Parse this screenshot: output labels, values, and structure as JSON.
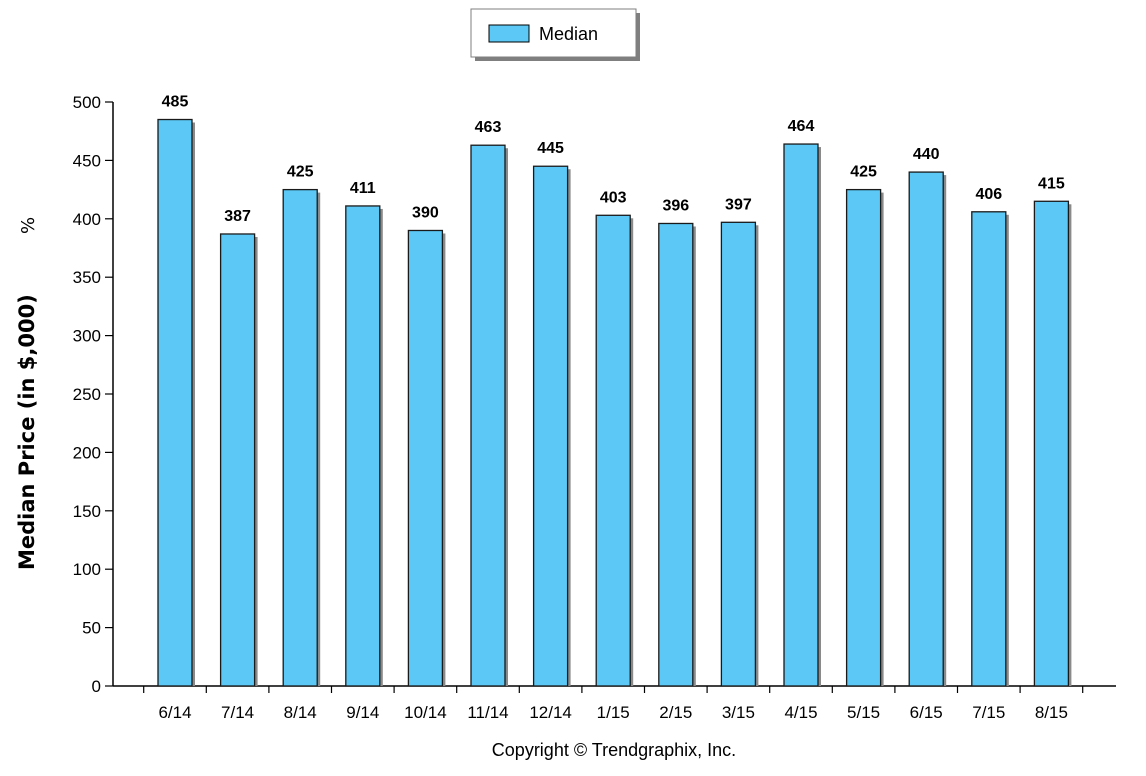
{
  "chart_data": {
    "type": "bar",
    "categories": [
      "6/14",
      "7/14",
      "8/14",
      "9/14",
      "10/14",
      "11/14",
      "12/14",
      "1/15",
      "2/15",
      "3/15",
      "4/15",
      "5/15",
      "6/15",
      "7/15",
      "8/15"
    ],
    "series": [
      {
        "name": "Median",
        "values": [
          485,
          387,
          425,
          411,
          390,
          463,
          445,
          403,
          396,
          397,
          464,
          425,
          440,
          406,
          415
        ],
        "color": "#5bc8f5"
      }
    ],
    "ylabel": "Median Price (in $,000)",
    "ylabel_suffix": "%",
    "ylim": [
      0,
      500
    ],
    "yticks": [
      0,
      50,
      100,
      150,
      200,
      250,
      300,
      350,
      400,
      450,
      500
    ],
    "grid": false,
    "legend": "top-center"
  },
  "footer": "Copyright © Trendgraphix, Inc."
}
